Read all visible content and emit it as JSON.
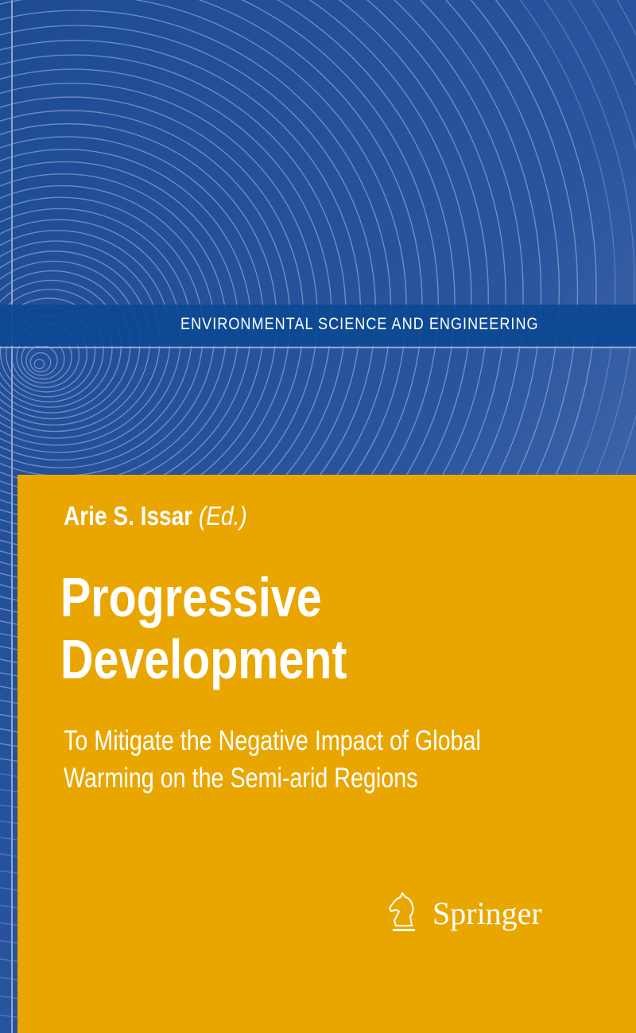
{
  "series": "ENVIRONMENTAL SCIENCE AND ENGINEERING",
  "author": {
    "name": "Arie S. Issar",
    "role_open": "(",
    "role": "Ed.",
    "role_close": ")"
  },
  "title": [
    "Progressive",
    "Development"
  ],
  "subtitle": [
    "To Mitigate the Negative Impact of Global",
    "Warming on the Semi-arid Regions"
  ],
  "publisher": {
    "name": "Springer",
    "logo": "knight-chess-piece-icon"
  },
  "colors": {
    "blue": "#2b559c",
    "band": "#0d4893",
    "orange": "#e9a600",
    "text": "#ffffff"
  }
}
